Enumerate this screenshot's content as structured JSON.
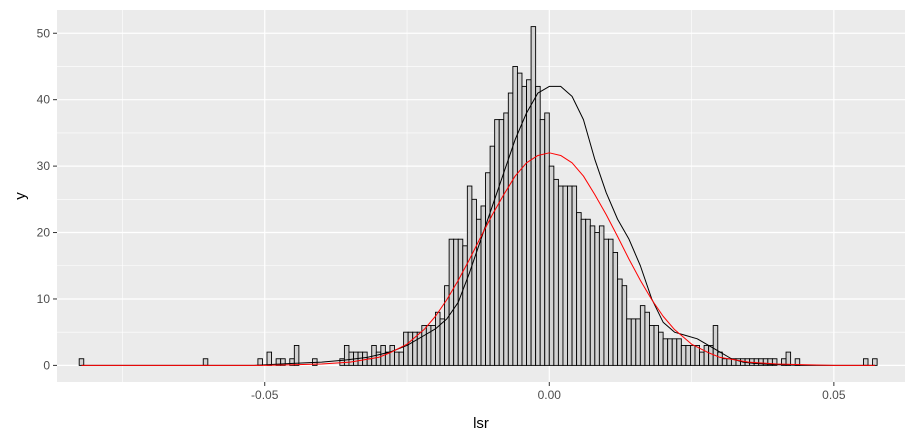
{
  "chart_data": {
    "type": "bar",
    "xlabel": "lsr",
    "ylabel": "y",
    "xlim": [
      -0.0865,
      0.0625
    ],
    "ylim": [
      -2.5,
      53.5
    ],
    "x_ticks": [
      -0.05,
      0.0,
      0.05
    ],
    "x_tick_labels": [
      "-0.05",
      "0.00",
      "0.05"
    ],
    "y_ticks": [
      0,
      10,
      20,
      30,
      40,
      50
    ],
    "y_tick_labels": [
      "0",
      "10",
      "20",
      "30",
      "40",
      "50"
    ],
    "grid": true,
    "legend": "none",
    "bin_width": 0.0008,
    "histogram": {
      "x": [
        -0.0822,
        -0.0604,
        -0.0508,
        -0.0492,
        -0.0476,
        -0.0468,
        -0.0452,
        -0.0444,
        -0.0412,
        -0.0364,
        -0.0356,
        -0.0348,
        -0.034,
        -0.0332,
        -0.0324,
        -0.0316,
        -0.0308,
        -0.03,
        -0.0292,
        -0.0284,
        -0.0276,
        -0.0268,
        -0.026,
        -0.0252,
        -0.0244,
        -0.0236,
        -0.0228,
        -0.022,
        -0.0212,
        -0.0204,
        -0.0196,
        -0.0188,
        -0.018,
        -0.0172,
        -0.0164,
        -0.0156,
        -0.0148,
        -0.014,
        -0.0132,
        -0.0124,
        -0.0116,
        -0.0108,
        -0.01,
        -0.0092,
        -0.0084,
        -0.0076,
        -0.0068,
        -0.006,
        -0.0052,
        -0.0044,
        -0.0036,
        -0.0028,
        -0.002,
        -0.0012,
        -0.0004,
        0.0004,
        0.0012,
        0.002,
        0.0028,
        0.0036,
        0.0044,
        0.0052,
        0.006,
        0.0068,
        0.0076,
        0.0084,
        0.0092,
        0.01,
        0.0108,
        0.0116,
        0.0124,
        0.0132,
        0.014,
        0.0148,
        0.0156,
        0.0164,
        0.0172,
        0.018,
        0.0188,
        0.0196,
        0.0204,
        0.0212,
        0.022,
        0.0228,
        0.0236,
        0.0244,
        0.0252,
        0.026,
        0.0268,
        0.0276,
        0.0284,
        0.0292,
        0.03,
        0.0308,
        0.0316,
        0.0324,
        0.0332,
        0.034,
        0.0348,
        0.0356,
        0.0364,
        0.0372,
        0.038,
        0.0388,
        0.0396,
        0.0412,
        0.042,
        0.0436,
        0.0556,
        0.0572
      ],
      "y": [
        1,
        1,
        1,
        2,
        1,
        1,
        1,
        3,
        1,
        1,
        3,
        2,
        2,
        2,
        2,
        1,
        3,
        2,
        3,
        2,
        3,
        2,
        2,
        5,
        5,
        5,
        5,
        6,
        6,
        6,
        8,
        7,
        12,
        19,
        19,
        19,
        18,
        27,
        25,
        22,
        24,
        29,
        33,
        37,
        37,
        38,
        41,
        45,
        44,
        42,
        43,
        51,
        42,
        37,
        38,
        30,
        28,
        27,
        27,
        27,
        27,
        23,
        22,
        22,
        21,
        20,
        21,
        19,
        19,
        17,
        13,
        12,
        7,
        7,
        7,
        9,
        8,
        6,
        6,
        5,
        4,
        4,
        4,
        4,
        3,
        3,
        3,
        3,
        2,
        3,
        3,
        6,
        2,
        1,
        1,
        1,
        1,
        1,
        1,
        1,
        1,
        1,
        1,
        1,
        1,
        1,
        2,
        1,
        1,
        1
      ]
    },
    "series": [
      {
        "kind": "density",
        "color": "#000000",
        "x": [
          -0.0822,
          -0.052,
          -0.045,
          -0.04,
          -0.036,
          -0.032,
          -0.028,
          -0.025,
          -0.022,
          -0.02,
          -0.018,
          -0.016,
          -0.014,
          -0.012,
          -0.01,
          -0.008,
          -0.006,
          -0.004,
          -0.002,
          0.0,
          0.002,
          0.004,
          0.006,
          0.008,
          0.01,
          0.012,
          0.014,
          0.016,
          0.018,
          0.02,
          0.022,
          0.024,
          0.026,
          0.028,
          0.03,
          0.032,
          0.034,
          0.036,
          0.04,
          0.044,
          0.055,
          0.0572
        ],
        "y": [
          0,
          0,
          0.3,
          0.5,
          0.8,
          1.2,
          2,
          3,
          4.5,
          5.5,
          7,
          9.5,
          14,
          19,
          24,
          29,
          34,
          38,
          41,
          42,
          42,
          40.5,
          37,
          31,
          26,
          22,
          19,
          15,
          10,
          6.5,
          5,
          4.5,
          4,
          3,
          2,
          1,
          0.5,
          0.3,
          0.1,
          0,
          0,
          0
        ]
      },
      {
        "kind": "normal",
        "color": "#ff0000",
        "x": [
          -0.0822,
          -0.05,
          -0.045,
          -0.04,
          -0.035,
          -0.03,
          -0.028,
          -0.025,
          -0.022,
          -0.02,
          -0.018,
          -0.016,
          -0.014,
          -0.012,
          -0.01,
          -0.008,
          -0.006,
          -0.004,
          -0.002,
          0.0,
          0.002,
          0.004,
          0.006,
          0.008,
          0.01,
          0.012,
          0.014,
          0.016,
          0.018,
          0.02,
          0.022,
          0.025,
          0.028,
          0.03,
          0.035,
          0.04,
          0.045,
          0.05,
          0.0572
        ],
        "y": [
          0,
          0,
          0.1,
          0.2,
          0.5,
          1.2,
          1.9,
          3.2,
          5.4,
          7.4,
          9.9,
          12.8,
          16,
          19.4,
          22.7,
          25.7,
          28.5,
          30.5,
          31.6,
          32,
          31.6,
          30.5,
          28.5,
          25.7,
          22.7,
          19.4,
          16,
          12.8,
          9.9,
          7.4,
          5.4,
          3.2,
          1.9,
          1.2,
          0.5,
          0.2,
          0.1,
          0,
          0
        ]
      }
    ]
  }
}
